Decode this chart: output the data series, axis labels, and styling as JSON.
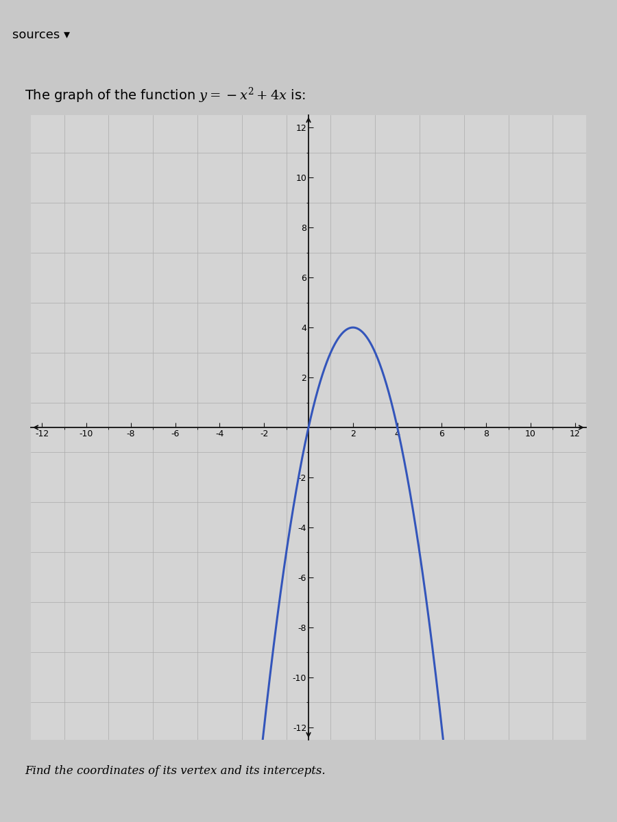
{
  "title_text": "The graph of the function $y = -x^2 + 4x$ is:",
  "footer_text": "Find the coordinates of its vertex and its intercepts.",
  "header_label": "sources ▾",
  "function_a": -1,
  "function_b": 4,
  "function_c": 0,
  "xlim": [
    -12.5,
    12.5
  ],
  "ylim": [
    -12.5,
    12.5
  ],
  "xtick_vals": [
    -12,
    -10,
    -8,
    -6,
    -4,
    -2,
    2,
    4,
    6,
    8,
    10,
    12
  ],
  "ytick_vals": [
    -12,
    -10,
    -8,
    -6,
    -4,
    -2,
    2,
    4,
    6,
    8,
    10,
    12
  ],
  "curve_color": "#3355bb",
  "curve_linewidth": 2.2,
  "axis_color": "#111111",
  "grid_color": "#aaaaaa",
  "background_color": "#c8c8c8",
  "plot_bg_color": "#d4d4d4",
  "header_fontsize": 13,
  "title_fontsize": 14,
  "footer_fontsize": 12,
  "tick_label_fontsize": 9
}
